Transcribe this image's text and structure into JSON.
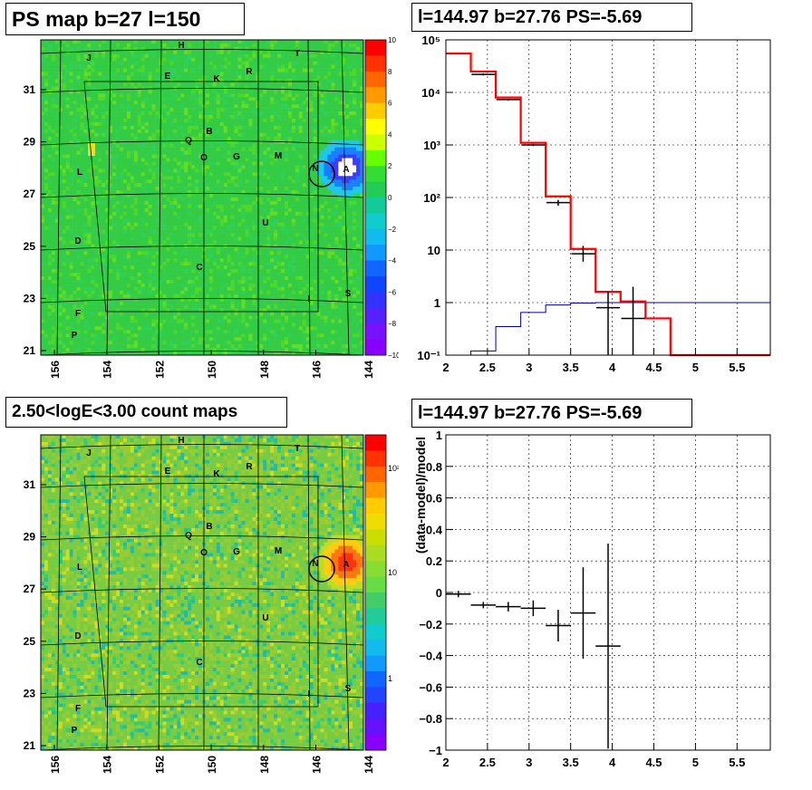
{
  "panels": {
    "ps_map": {
      "title": "PS map b=27 l=150",
      "x_ticks": [
        "156",
        "154",
        "152",
        "150",
        "148",
        "146",
        "144"
      ],
      "y_ticks": [
        "31",
        "29",
        "27",
        "25",
        "23",
        "21"
      ],
      "colorbar_ticks": [
        "10",
        "8",
        "6",
        "4",
        "2",
        "0",
        "−2",
        "−4",
        "−6",
        "−8",
        "−10"
      ],
      "source_labels": [
        "J",
        "H",
        "E",
        "K",
        "R",
        "T",
        "Q",
        "B",
        "O",
        "G",
        "M",
        "N",
        "A",
        "L",
        "U",
        "D",
        "C",
        "I",
        "S",
        "F",
        "P"
      ]
    },
    "count_map": {
      "title": "2.50<logE<3.00 count maps",
      "x_ticks": [
        "156",
        "154",
        "152",
        "150",
        "148",
        "146",
        "144"
      ],
      "y_ticks": [
        "31",
        "29",
        "27",
        "25",
        "23",
        "21"
      ],
      "colorbar_ticks": [
        "10²",
        "10",
        "1"
      ],
      "source_labels": [
        "J",
        "H",
        "E",
        "K",
        "R",
        "T",
        "Q",
        "B",
        "O",
        "G",
        "M",
        "N",
        "A",
        "L",
        "U",
        "D",
        "C",
        "I",
        "S",
        "F",
        "P"
      ]
    },
    "spectrum": {
      "title": "l=144.97 b=27.76 PS=-5.69"
    },
    "residual": {
      "title": "l=144.97 b=27.76 PS=-5.69"
    }
  },
  "chart_data": [
    {
      "type": "heatmap",
      "name": "ps-map",
      "colorscale_range": [
        -10,
        10
      ],
      "x_ticks": [
        156,
        154,
        152,
        150,
        148,
        146,
        144
      ],
      "y_ticks": [
        31,
        29,
        27,
        25,
        23,
        21
      ],
      "background_value": 0.5,
      "hotspot": {
        "l": 144.3,
        "b": 28.0,
        "label": "A"
      },
      "colors": {
        "background": "#33cc33",
        "hot": "#ff6600",
        "cold": "#3333ff"
      }
    },
    {
      "type": "line",
      "name": "spectrum",
      "xlim": [
        2,
        5.9
      ],
      "ylim": [
        0.1,
        100000
      ],
      "y_scale": "log",
      "x_ticks": [
        "2",
        "2.5",
        "3",
        "3.5",
        "4",
        "4.5",
        "5",
        "5.5"
      ],
      "y_ticks": [
        "10⁵",
        "10⁴",
        "10³",
        "10²",
        "10",
        "1",
        "10⁻¹"
      ],
      "grid": true,
      "model_total_step": {
        "color": "#ff0000",
        "edges": [
          2.0,
          2.3,
          2.6,
          2.9,
          3.2,
          3.5,
          3.8,
          4.1,
          4.4,
          4.7,
          5.9
        ],
        "values": [
          55000,
          25000,
          8000,
          1100,
          105,
          10.5,
          1.6,
          1.05,
          0.5,
          0.1
        ]
      },
      "model_source_step": {
        "color": "#000099",
        "edges": [
          2.0,
          2.3,
          2.6,
          2.9,
          3.2,
          3.5,
          3.8,
          4.1,
          4.4,
          4.7,
          5.9
        ],
        "values": [
          0.08,
          0.12,
          0.35,
          0.65,
          0.9,
          0.98,
          1.0,
          1.0,
          1.0,
          1.0
        ]
      },
      "data_points": {
        "color": "#000000",
        "x": [
          2.45,
          2.75,
          3.05,
          3.35,
          3.65,
          3.95,
          4.25
        ],
        "y": [
          22000,
          7300,
          1000,
          80,
          8.5,
          0.8,
          0.5
        ],
        "y_low": [
          21000,
          7000,
          950,
          70,
          6.0,
          0.1,
          0.1
        ],
        "y_high": [
          23000,
          7600,
          1050,
          90,
          12,
          1.6,
          2.0
        ]
      }
    },
    {
      "type": "heatmap",
      "name": "count-map",
      "colorscale": "log",
      "colorbar_ticks": [
        "10²",
        "10",
        "1"
      ],
      "x_ticks": [
        156,
        154,
        152,
        150,
        148,
        146,
        144
      ],
      "y_ticks": [
        31,
        29,
        27,
        25,
        23,
        21
      ],
      "hotspot": {
        "l": 144.3,
        "b": 28.0,
        "label": "A"
      },
      "colors": {
        "background": "#99cc33",
        "hot": "#ff3300"
      }
    },
    {
      "type": "scatter",
      "name": "residual",
      "ylabel": "(data-model)/model",
      "xlim": [
        2,
        5.9
      ],
      "ylim": [
        -1,
        1
      ],
      "x_ticks": [
        "2",
        "2.5",
        "3",
        "3.5",
        "4",
        "4.5",
        "5",
        "5.5"
      ],
      "y_ticks": [
        "1",
        "0.8",
        "0.6",
        "0.4",
        "0.2",
        "0",
        "−0.2",
        "−0.4",
        "−0.6",
        "−0.8",
        "−1"
      ],
      "grid": true,
      "x": [
        2.15,
        2.45,
        2.75,
        3.05,
        3.35,
        3.65,
        3.95
      ],
      "y": [
        -0.01,
        -0.08,
        -0.09,
        -0.1,
        -0.21,
        -0.13,
        -0.34
      ],
      "x_halfwidth": [
        0.15,
        0.15,
        0.15,
        0.15,
        0.15,
        0.15,
        0.15
      ],
      "y_err": [
        0.02,
        0.02,
        0.03,
        0.05,
        0.1,
        0.29,
        0.65
      ]
    }
  ]
}
